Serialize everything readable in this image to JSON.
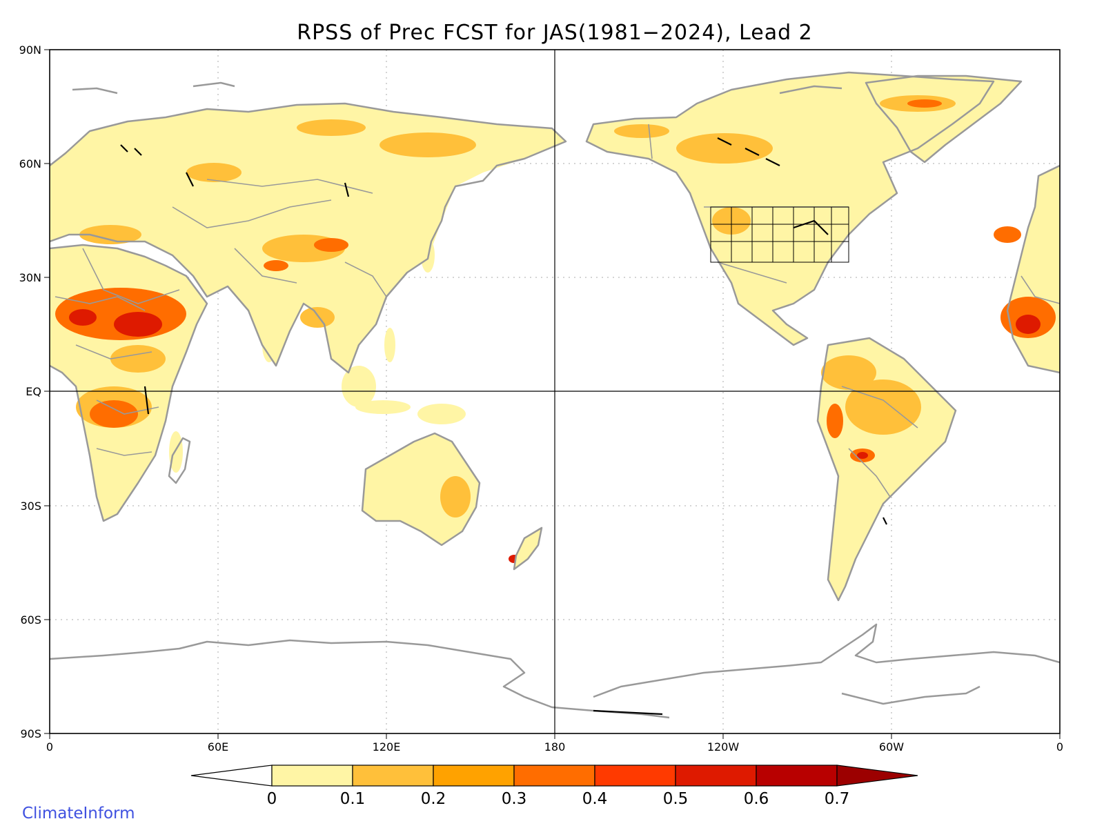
{
  "title": "RPSS of Prec FCST for JAS(1981−2024), Lead 2",
  "lat_ticks": [
    "90N",
    "60N",
    "30N",
    "EQ",
    "30S",
    "60S",
    "90S"
  ],
  "lon_ticks": [
    "0",
    "60E",
    "120E",
    "180",
    "120W",
    "60W",
    "0"
  ],
  "colorbar": {
    "labels": [
      "0",
      "0.1",
      "0.2",
      "0.3",
      "0.4",
      "0.5",
      "0.6",
      "0.7"
    ],
    "colors": [
      "#ffffff",
      "#fff5a5",
      "#ffc03a",
      "#ffa200",
      "#ff6d00",
      "#ff3a00",
      "#de1a00",
      "#b80000",
      "#9c0000"
    ]
  },
  "brand": "ClimateInform"
}
